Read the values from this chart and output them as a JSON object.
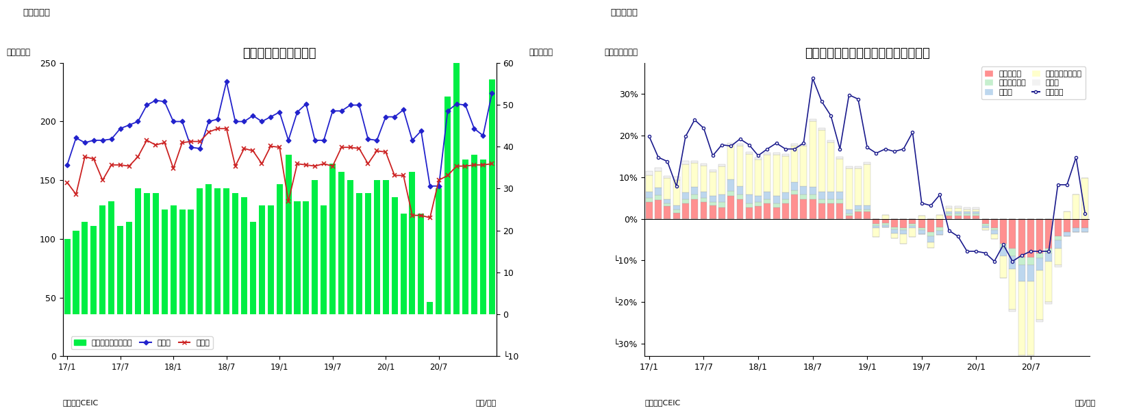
{
  "chart1": {
    "title": "マレーシア　貳易収支",
    "ylabel_left": "（億ドル）",
    "ylabel_right": "（億ドル）",
    "source": "（資料）CEIC",
    "xlabel": "（年/月）",
    "header": "（図表７）",
    "ylim_left": [
      0,
      250
    ],
    "ylim_right": [
      -10,
      60
    ],
    "yticks_left": [
      0,
      50,
      100,
      150,
      200,
      250
    ],
    "yticks_right_vals": [
      -10,
      0,
      10,
      20,
      30,
      40,
      50,
      60
    ],
    "yticks_right_labels": [
      "└10",
      "0",
      "10",
      "20",
      "30",
      "40",
      "50",
      "60"
    ],
    "xtick_pos": [
      0,
      6,
      12,
      18,
      24,
      30,
      36,
      42
    ],
    "xtick_labels": [
      "17/1",
      "17/7",
      "18/1",
      "18/7",
      "19/1",
      "19/7",
      "20/1",
      "20/7"
    ],
    "export": [
      163,
      186,
      182,
      184,
      184,
      185,
      194,
      197,
      200,
      214,
      218,
      217,
      200,
      200,
      178,
      177,
      200,
      202,
      234,
      200,
      200,
      205,
      200,
      204,
      208,
      184,
      208,
      215,
      184,
      184,
      209,
      209,
      214,
      214,
      185,
      184,
      204,
      204,
      210,
      184,
      192,
      145,
      145,
      209,
      215,
      214,
      194,
      188,
      224
    ],
    "import": [
      148,
      138,
      170,
      168,
      150,
      163,
      163,
      162,
      170,
      184,
      180,
      182,
      160,
      182,
      183,
      183,
      191,
      194,
      194,
      162,
      177,
      175,
      164,
      179,
      178,
      132,
      164,
      163,
      162,
      164,
      162,
      178,
      178,
      177,
      164,
      175,
      174,
      154,
      154,
      120,
      120,
      118,
      150,
      154,
      162,
      162,
      163,
      163,
      164
    ],
    "trade_balance_right": [
      18,
      20,
      22,
      21,
      26,
      27,
      21,
      22,
      30,
      29,
      29,
      25,
      26,
      25,
      25,
      30,
      31,
      30,
      30,
      29,
      28,
      22,
      26,
      26,
      31,
      38,
      27,
      27,
      32,
      26,
      36,
      34,
      32,
      29,
      29,
      32,
      32,
      28,
      24,
      34,
      24,
      3,
      30,
      52,
      61,
      37,
      38,
      37,
      56
    ],
    "legend_bar": "貳易収支（右目盛）",
    "legend_export": "輸出領",
    "legend_import": "輸入領",
    "bar_color": "#00ee44",
    "export_color": "#2222cc",
    "import_color": "#cc2222"
  },
  "chart2": {
    "title": "マレーシア　輸出の伸び率（品目別）",
    "ylabel": "（前年同月比）",
    "source": "（資料）CEIC",
    "xlabel": "（年/月）",
    "header": "（図表８）",
    "ylim": [
      -0.33,
      0.375
    ],
    "ytick_vals": [
      -0.3,
      -0.2,
      -0.1,
      0.0,
      0.1,
      0.2,
      0.3
    ],
    "ytick_labels": [
      "└30%",
      "└20%",
      "└10%",
      "0%",
      "10%",
      "20%",
      "30%"
    ],
    "xtick_pos": [
      0,
      6,
      12,
      18,
      24,
      30,
      36,
      42
    ],
    "xtick_labels": [
      "17/1",
      "17/7",
      "18/1",
      "18/7",
      "19/1",
      "19/7",
      "20/1",
      "20/7"
    ],
    "mineral_fuel": [
      0.04,
      0.045,
      0.03,
      0.015,
      0.038,
      0.048,
      0.04,
      0.032,
      0.028,
      0.055,
      0.048,
      0.028,
      0.03,
      0.038,
      0.028,
      0.038,
      0.058,
      0.048,
      0.048,
      0.038,
      0.038,
      0.038,
      0.008,
      0.018,
      0.018,
      -0.012,
      -0.01,
      -0.02,
      -0.022,
      -0.012,
      -0.022,
      -0.032,
      -0.02,
      0.008,
      0.008,
      0.008,
      0.008,
      -0.012,
      -0.022,
      -0.06,
      -0.072,
      -0.092,
      -0.092,
      -0.082,
      -0.072,
      -0.042,
      -0.032,
      -0.022,
      -0.022
    ],
    "animal_veg_oil": [
      0.01,
      0.012,
      0.008,
      0.008,
      0.01,
      0.01,
      0.01,
      0.008,
      0.012,
      0.012,
      0.01,
      0.01,
      0.01,
      0.01,
      0.01,
      0.01,
      0.01,
      0.01,
      0.01,
      0.01,
      0.01,
      0.01,
      0.005,
      0.005,
      0.005,
      -0.005,
      -0.005,
      -0.005,
      -0.005,
      -0.005,
      -0.005,
      -0.01,
      -0.008,
      0.005,
      0.005,
      0.005,
      0.005,
      -0.005,
      -0.005,
      -0.01,
      -0.018,
      -0.018,
      -0.018,
      -0.012,
      -0.01,
      -0.01,
      0.0,
      0.0,
      0.0
    ],
    "manufactured": [
      0.015,
      0.018,
      0.01,
      0.01,
      0.015,
      0.018,
      0.015,
      0.015,
      0.018,
      0.028,
      0.02,
      0.02,
      0.015,
      0.018,
      0.018,
      0.015,
      0.02,
      0.02,
      0.018,
      0.018,
      0.018,
      0.018,
      0.01,
      0.01,
      0.01,
      -0.005,
      -0.005,
      -0.01,
      -0.01,
      -0.005,
      -0.01,
      -0.015,
      -0.01,
      0.005,
      0.005,
      0.005,
      0.005,
      -0.005,
      -0.01,
      -0.02,
      -0.03,
      -0.04,
      -0.04,
      -0.03,
      -0.02,
      -0.02,
      -0.01,
      -0.01,
      -0.01
    ],
    "machinery": [
      0.04,
      0.04,
      0.05,
      0.06,
      0.068,
      0.058,
      0.062,
      0.058,
      0.068,
      0.082,
      0.098,
      0.098,
      0.088,
      0.088,
      0.098,
      0.088,
      0.088,
      0.098,
      0.158,
      0.148,
      0.118,
      0.078,
      0.098,
      0.088,
      0.098,
      -0.022,
      0.01,
      -0.012,
      -0.022,
      -0.022,
      0.008,
      -0.012,
      0.01,
      0.008,
      0.008,
      0.005,
      0.005,
      -0.005,
      -0.012,
      -0.052,
      -0.098,
      -0.178,
      -0.178,
      -0.118,
      -0.098,
      -0.038,
      0.018,
      0.058,
      0.098
    ],
    "other": [
      0.01,
      0.008,
      0.005,
      0.008,
      0.008,
      0.005,
      0.005,
      0.005,
      0.005,
      0.005,
      0.005,
      0.005,
      0.005,
      0.005,
      0.005,
      0.005,
      0.005,
      0.005,
      0.005,
      0.005,
      0.005,
      0.005,
      0.005,
      0.005,
      0.005,
      0.0,
      0.0,
      0.0,
      0.0,
      0.0,
      0.0,
      0.0,
      0.0,
      0.005,
      0.005,
      0.005,
      0.005,
      0.0,
      0.0,
      0.0,
      -0.005,
      -0.005,
      -0.005,
      -0.005,
      -0.005,
      -0.005,
      0.0,
      0.0,
      0.0
    ],
    "total_export": [
      0.198,
      0.148,
      0.138,
      0.078,
      0.198,
      0.238,
      0.218,
      0.152,
      0.178,
      0.175,
      0.192,
      0.178,
      0.152,
      0.168,
      0.182,
      0.168,
      0.168,
      0.182,
      0.338,
      0.282,
      0.248,
      0.168,
      0.298,
      0.288,
      0.172,
      0.158,
      0.168,
      0.162,
      0.168,
      0.208,
      0.038,
      0.032,
      0.058,
      -0.028,
      -0.042,
      -0.078,
      -0.078,
      -0.082,
      -0.102,
      -0.062,
      -0.102,
      -0.088,
      -0.078,
      -0.078,
      -0.078,
      0.082,
      0.082,
      0.148,
      0.012
    ],
    "mineral_fuel_color": "#ff9090",
    "animal_veg_oil_color": "#c6efce",
    "manufactured_color": "#bdd7ee",
    "machinery_color": "#ffffcc",
    "other_color": "#f2f2f2",
    "total_line_color": "#1a1a8c",
    "legend_mineral": "鉱物性燃料",
    "legend_animal": "動植物性油脂",
    "legend_manufactured": "製造品",
    "legend_machinery": "機械・輸送用機器",
    "legend_other": "その他",
    "legend_total": "輸出合計"
  }
}
